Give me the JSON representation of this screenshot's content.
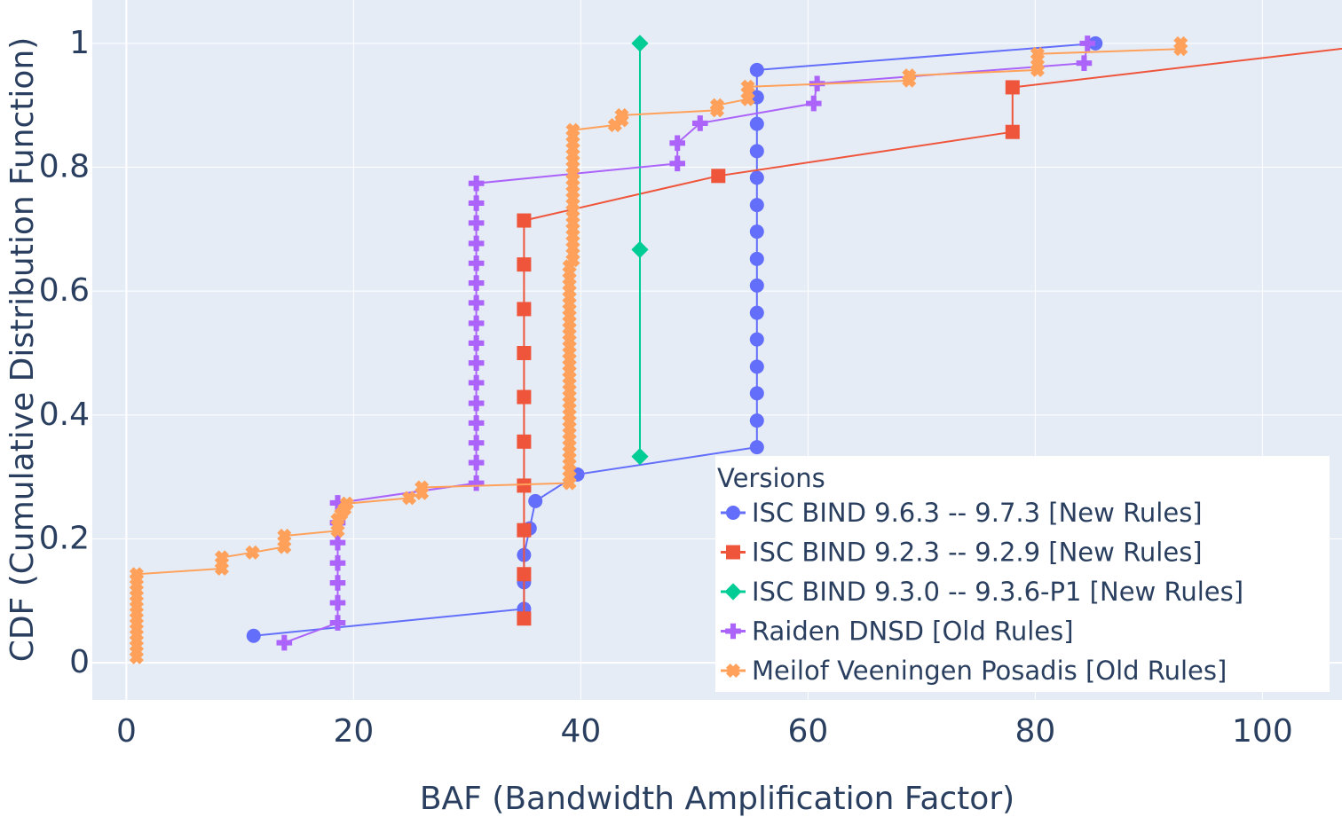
{
  "chart_data": {
    "type": "line",
    "xlabel": "BAF (Bandwidth Amplification Factor)",
    "ylabel": "CDF (Cumulative Distribution Function)",
    "xlim": [
      -3,
      107
    ],
    "ylim": [
      -0.06,
      1.07
    ],
    "x_ticks": [
      0,
      20,
      40,
      60,
      80,
      100
    ],
    "x_tick_labels": [
      "0",
      "20",
      "40",
      "60",
      "80",
      "100"
    ],
    "y_ticks": [
      0,
      0.2,
      0.4,
      0.6,
      0.8,
      1
    ],
    "y_tick_labels": [
      "0",
      "0.2",
      "0.4",
      "0.6",
      "0.8",
      "1"
    ],
    "grid": true,
    "plot_background": "#e5ecf6",
    "legend": {
      "title": "Versions",
      "placement": "bottom-right"
    },
    "series": [
      {
        "name": "ISC BIND 9.6.3 -- 9.7.3 [New Rules]",
        "color": "#636efa",
        "marker": "circle",
        "points": [
          [
            11.2,
            0.0435
          ],
          [
            35.0,
            0.087
          ],
          [
            35.0,
            0.13
          ],
          [
            35.0,
            0.174
          ],
          [
            35.5,
            0.217
          ],
          [
            36.0,
            0.261
          ],
          [
            39.7,
            0.304
          ],
          [
            55.5,
            0.348
          ],
          [
            55.5,
            0.391
          ],
          [
            55.5,
            0.435
          ],
          [
            55.5,
            0.478
          ],
          [
            55.5,
            0.522
          ],
          [
            55.5,
            0.565
          ],
          [
            55.5,
            0.609
          ],
          [
            55.5,
            0.652
          ],
          [
            55.5,
            0.696
          ],
          [
            55.5,
            0.739
          ],
          [
            55.5,
            0.783
          ],
          [
            55.5,
            0.826
          ],
          [
            55.5,
            0.87
          ],
          [
            55.5,
            0.913
          ],
          [
            55.5,
            0.957
          ],
          [
            85.3,
            1.0
          ]
        ]
      },
      {
        "name": "ISC BIND 9.2.3 -- 9.2.9 [New Rules]",
        "color": "#ef553b",
        "marker": "square",
        "points": [
          [
            35.0,
            0.0714
          ],
          [
            35.0,
            0.143
          ],
          [
            35.0,
            0.214
          ],
          [
            35.0,
            0.286
          ],
          [
            35.0,
            0.357
          ],
          [
            35.0,
            0.429
          ],
          [
            35.0,
            0.5
          ],
          [
            35.0,
            0.571
          ],
          [
            35.0,
            0.643
          ],
          [
            35.0,
            0.714
          ],
          [
            52.1,
            0.786
          ],
          [
            78.0,
            0.857
          ],
          [
            78.0,
            0.929
          ],
          [
            111.0,
            1.0
          ]
        ]
      },
      {
        "name": "ISC BIND 9.3.0 -- 9.3.6-P1 [New Rules]",
        "color": "#00cc96",
        "marker": "diamond",
        "points": [
          [
            45.2,
            0.333
          ],
          [
            45.2,
            0.667
          ],
          [
            45.2,
            1.0
          ]
        ]
      },
      {
        "name": "Raiden DNSD  [Old Rules]",
        "color": "#ab63fa",
        "marker": "cross",
        "points": [
          [
            13.9,
            0.0323
          ],
          [
            18.6,
            0.0645
          ],
          [
            18.6,
            0.0968
          ],
          [
            18.6,
            0.129
          ],
          [
            18.6,
            0.161
          ],
          [
            18.6,
            0.194
          ],
          [
            18.6,
            0.226
          ],
          [
            18.6,
            0.258
          ],
          [
            30.8,
            0.29
          ],
          [
            30.8,
            0.323
          ],
          [
            30.8,
            0.355
          ],
          [
            30.8,
            0.387
          ],
          [
            30.8,
            0.419
          ],
          [
            30.8,
            0.452
          ],
          [
            30.8,
            0.484
          ],
          [
            30.8,
            0.516
          ],
          [
            30.8,
            0.548
          ],
          [
            30.8,
            0.581
          ],
          [
            30.8,
            0.613
          ],
          [
            30.8,
            0.645
          ],
          [
            30.8,
            0.677
          ],
          [
            30.8,
            0.71
          ],
          [
            30.8,
            0.742
          ],
          [
            30.8,
            0.774
          ],
          [
            48.5,
            0.806
          ],
          [
            48.5,
            0.839
          ],
          [
            50.5,
            0.871
          ],
          [
            60.5,
            0.903
          ],
          [
            60.8,
            0.935
          ],
          [
            84.3,
            0.968
          ],
          [
            84.6,
            1.0
          ]
        ]
      },
      {
        "name": "Meilof Veeningen Posadis  [Old Rules]",
        "color": "#ffa15a",
        "marker": "x",
        "points": [
          [
            0.9,
            0.009
          ],
          [
            0.9,
            0.018
          ],
          [
            0.9,
            0.027
          ],
          [
            0.9,
            0.036
          ],
          [
            0.9,
            0.045
          ],
          [
            0.9,
            0.054
          ],
          [
            0.9,
            0.063
          ],
          [
            0.9,
            0.072
          ],
          [
            0.9,
            0.081
          ],
          [
            0.9,
            0.09
          ],
          [
            0.9,
            0.099
          ],
          [
            0.9,
            0.108
          ],
          [
            0.9,
            0.117
          ],
          [
            0.9,
            0.126
          ],
          [
            0.9,
            0.135
          ],
          [
            0.9,
            0.143
          ],
          [
            8.4,
            0.152
          ],
          [
            8.4,
            0.161
          ],
          [
            8.4,
            0.17
          ],
          [
            11.1,
            0.178
          ],
          [
            13.9,
            0.187
          ],
          [
            13.9,
            0.196
          ],
          [
            13.9,
            0.205
          ],
          [
            18.6,
            0.213
          ],
          [
            18.6,
            0.222
          ],
          [
            18.6,
            0.231
          ],
          [
            18.9,
            0.24
          ],
          [
            19.2,
            0.248
          ],
          [
            19.4,
            0.257
          ],
          [
            24.9,
            0.266
          ],
          [
            26.0,
            0.274
          ],
          [
            26.0,
            0.283
          ],
          [
            39.0,
            0.29
          ],
          [
            39.0,
            0.3
          ],
          [
            39.0,
            0.31
          ],
          [
            39.0,
            0.32
          ],
          [
            39.0,
            0.33
          ],
          [
            39.0,
            0.34
          ],
          [
            39.0,
            0.35
          ],
          [
            39.0,
            0.36
          ],
          [
            39.0,
            0.37
          ],
          [
            39.0,
            0.38
          ],
          [
            39.0,
            0.39
          ],
          [
            39.0,
            0.4
          ],
          [
            39.0,
            0.41
          ],
          [
            39.0,
            0.42
          ],
          [
            39.0,
            0.43
          ],
          [
            39.0,
            0.44
          ],
          [
            39.0,
            0.45
          ],
          [
            39.0,
            0.46
          ],
          [
            39.0,
            0.47
          ],
          [
            39.0,
            0.48
          ],
          [
            39.0,
            0.49
          ],
          [
            39.0,
            0.5
          ],
          [
            39.0,
            0.51
          ],
          [
            39.0,
            0.52
          ],
          [
            39.0,
            0.53
          ],
          [
            39.0,
            0.54
          ],
          [
            39.0,
            0.55
          ],
          [
            39.0,
            0.56
          ],
          [
            39.0,
            0.57
          ],
          [
            39.0,
            0.58
          ],
          [
            39.0,
            0.59
          ],
          [
            39.0,
            0.6
          ],
          [
            39.0,
            0.61
          ],
          [
            39.0,
            0.62
          ],
          [
            39.0,
            0.63
          ],
          [
            39.0,
            0.64
          ],
          [
            39.3,
            0.65
          ],
          [
            39.3,
            0.66
          ],
          [
            39.3,
            0.67
          ],
          [
            39.3,
            0.68
          ],
          [
            39.3,
            0.69
          ],
          [
            39.3,
            0.7
          ],
          [
            39.3,
            0.71
          ],
          [
            39.3,
            0.72
          ],
          [
            39.3,
            0.73
          ],
          [
            39.3,
            0.74
          ],
          [
            39.3,
            0.75
          ],
          [
            39.3,
            0.76
          ],
          [
            39.3,
            0.77
          ],
          [
            39.3,
            0.78
          ],
          [
            39.3,
            0.79
          ],
          [
            39.3,
            0.8
          ],
          [
            39.3,
            0.81
          ],
          [
            39.3,
            0.82
          ],
          [
            39.3,
            0.83
          ],
          [
            39.3,
            0.84
          ],
          [
            39.3,
            0.85
          ],
          [
            39.3,
            0.86
          ],
          [
            43.0,
            0.868
          ],
          [
            43.6,
            0.876
          ],
          [
            43.6,
            0.884
          ],
          [
            52.0,
            0.892
          ],
          [
            52.0,
            0.9
          ],
          [
            54.7,
            0.91
          ],
          [
            54.7,
            0.92
          ],
          [
            54.7,
            0.93
          ],
          [
            68.9,
            0.94
          ],
          [
            68.9,
            0.948
          ],
          [
            80.2,
            0.957
          ],
          [
            80.2,
            0.965
          ],
          [
            80.2,
            0.974
          ],
          [
            80.2,
            0.983
          ],
          [
            92.8,
            0.991
          ],
          [
            92.8,
            1.0
          ]
        ]
      }
    ]
  }
}
